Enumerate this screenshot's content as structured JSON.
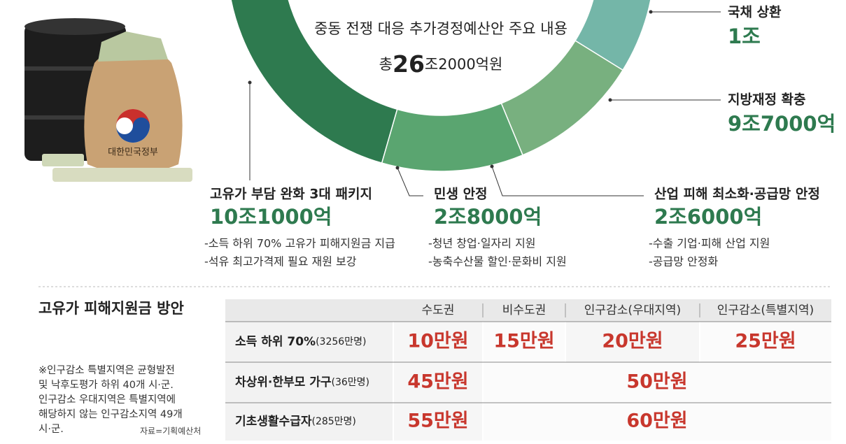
{
  "chart_data": {
    "type": "donut",
    "title": "중동 전쟁 대응 추가경정예산안 주요 내용",
    "total": {
      "value": 26.2,
      "label_parts": [
        "총",
        "26",
        "조2000억원"
      ]
    },
    "categories": [
      "고유가 부담 완화 3대 패키지",
      "국채 상환",
      "지방재정 확충",
      "산업 피해 최소화·공급망 안정",
      "민생 안정"
    ],
    "values": [
      10.1,
      1,
      9.7,
      2.6,
      2.8
    ],
    "value_labels": [
      "10조1000억",
      "1조",
      "9조7000억",
      "2조6000억",
      "2조8000억"
    ],
    "colors": [
      "#2e7a4f",
      "#a9d3c9",
      "#74b6a8",
      "#78b07f",
      "#5aa570"
    ],
    "details": [
      [
        "-소득 하위 70% 고유가 피해지원금 지급",
        "-석유 최고가격제 필요 재원 보강"
      ],
      [],
      [],
      [
        "-수출 기업·피해 산업 지원",
        "-공급망 안정화"
      ],
      [
        "-청년 창업·일자리 지원",
        "-농축수산물 할인·문화비 지원"
      ]
    ]
  },
  "illustration_text": "대한민국정부",
  "table": {
    "title": "고유가 피해지원금 방안",
    "columns": [
      "수도권",
      "비수도권",
      "인구감소(우대지역)",
      "인구감소(특별지역)"
    ],
    "rows": [
      {
        "label": "소득 하위 70%",
        "sub": "(3256만명)",
        "cells": [
          "10만원",
          "15만원",
          "20만원",
          "25만원"
        ]
      },
      {
        "label": "차상위·한부모 가구",
        "sub": "(36만명)",
        "cells": [
          "45만원",
          "50만원"
        ]
      },
      {
        "label": "기초생활수급자",
        "sub": "(285만명)",
        "cells": [
          "55만원",
          "60만원"
        ]
      }
    ]
  },
  "notes": [
    "※인구감소 특별지역은 균형발전",
    "및 낙후도평가 하위 40개 시·군.",
    "인구감소 우대지역은 특별지역에",
    "해당하지 않는 인구감소지역 49개",
    "시·군."
  ],
  "source": "자료=기획예산처"
}
